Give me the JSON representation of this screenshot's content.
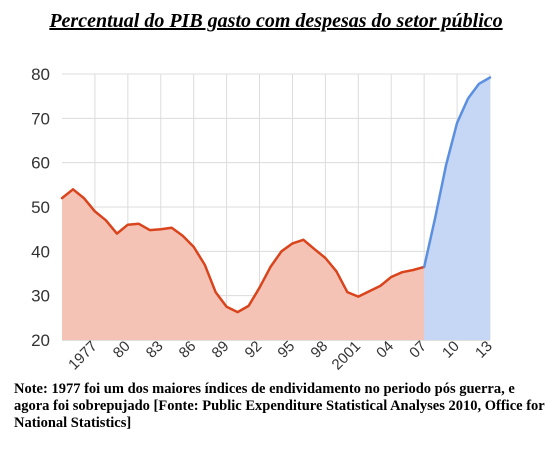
{
  "chart_data": {
    "type": "area",
    "title": "Percentual do PIB gasto com despesas do setor público",
    "xlabel": "",
    "ylabel": "",
    "xlim": [
      1974,
      2013
    ],
    "ylim": [
      20,
      80
    ],
    "y_ticks": [
      20,
      30,
      40,
      50,
      60,
      70,
      80
    ],
    "x_ticks": [
      {
        "x": 1977,
        "label": "1977"
      },
      {
        "x": 1980,
        "label": "80"
      },
      {
        "x": 1983,
        "label": "83"
      },
      {
        "x": 1986,
        "label": "86"
      },
      {
        "x": 1989,
        "label": "89"
      },
      {
        "x": 1992,
        "label": "92"
      },
      {
        "x": 1995,
        "label": "95"
      },
      {
        "x": 1998,
        "label": "98"
      },
      {
        "x": 2001,
        "label": "2001"
      },
      {
        "x": 2004,
        "label": "04"
      },
      {
        "x": 2007,
        "label": "07"
      },
      {
        "x": 2010,
        "label": "10"
      },
      {
        "x": 2013,
        "label": "13"
      }
    ],
    "grid": true,
    "series": [
      {
        "color": "#d9441c",
        "fill": "#f4c3b6",
        "x": [
          1974,
          1975,
          1976,
          1977,
          1978,
          1979,
          1980,
          1981,
          1982,
          1983,
          1984,
          1985,
          1986,
          1987,
          1988,
          1989,
          1990,
          1991,
          1992,
          1993,
          1994,
          1995,
          1996,
          1997,
          1998,
          1999,
          2000,
          2001,
          2002,
          2003,
          2004,
          2005,
          2006,
          2007
        ],
        "y": [
          52,
          54,
          52,
          49,
          47,
          44,
          46,
          46.2,
          44.8,
          45,
          45.3,
          43.5,
          41,
          37,
          30.8,
          27.5,
          26.3,
          27.7,
          31.8,
          36.5,
          40,
          41.8,
          42.6,
          40.5,
          38.5,
          35.5,
          30.8,
          29.8,
          31,
          32.2,
          34.2,
          35.3,
          35.8,
          36.5
        ]
      },
      {
        "color": "#5b8fe0",
        "fill": "#c6d6f5",
        "x": [
          2007,
          2008,
          2009,
          2010,
          2011,
          2012,
          2013
        ],
        "y": [
          36.5,
          47.5,
          59.5,
          69,
          74.5,
          77.8,
          79.2
        ]
      }
    ]
  },
  "note": "Note: 1977 foi um dos maiores índices de endividamento no periodo pós guerra, e agora foi sobrepujado [Fonte: Public Expenditure Statistical Analyses 2010, Office for National Statistics]"
}
